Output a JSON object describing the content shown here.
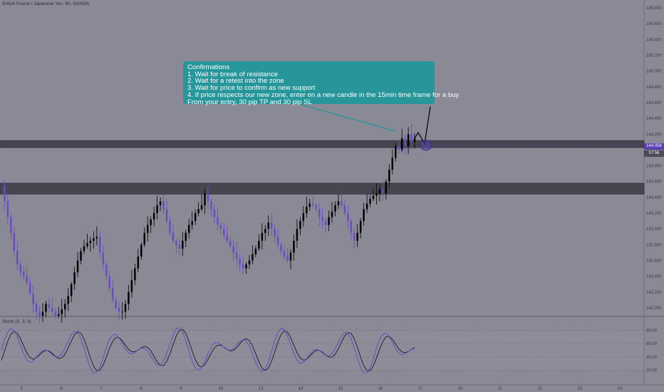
{
  "symbol_title": "British Pound / Japanese Yen, 60, OANDA",
  "oscillator_label": "Stoch (5, 3, 3)",
  "annotation": {
    "lines": [
      "Confirmations",
      "1. Wait for break of resistance",
      "2. Wait for a retest into the zone",
      "3. Wait for price to confirm as new support",
      "4. If price respects our new zone, enter on a new candle in the 15min time frame for a buy",
      "From your entry, 30 pip TP and 30 pip SL"
    ]
  },
  "current_price": "144.056",
  "countdown": "07:56",
  "colors": {
    "background": "#8a8996",
    "bull_candle": "#000000",
    "bear_candle": "#6a4bc4",
    "zone": "#3a3a44",
    "annotation_bg": "#27969b",
    "price_badge": "#5a3fb1",
    "stoch_k": "#6a4bc4",
    "stoch_d": "#1a1a1a"
  },
  "chart_data": {
    "type": "candlestick",
    "price_axis": {
      "ylim": [
        141.9,
        145.9
      ],
      "ticks": [
        142.0,
        142.2,
        142.4,
        142.6,
        142.8,
        143.0,
        143.2,
        143.4,
        143.6,
        143.8,
        144.0,
        144.2,
        144.4,
        144.6,
        144.8,
        145.0,
        145.2,
        145.4,
        145.6,
        145.8
      ],
      "tick_labels": [
        "142.000",
        "142.200",
        "142.400",
        "142.600",
        "142.800",
        "143.000",
        "143.200",
        "143.400",
        "143.600",
        "143.800",
        "144.000",
        "144.200",
        "144.400",
        "144.600",
        "144.800",
        "145.000",
        "145.200",
        "145.400",
        "145.600",
        "145.800"
      ]
    },
    "x_axis": {
      "tick_labels": [
        "3",
        "6",
        "7",
        "8",
        "9",
        "10",
        "13",
        "14",
        "15",
        "16",
        "17",
        "20",
        "21",
        "22",
        "23",
        "24"
      ]
    },
    "zones": [
      {
        "name": "resistance-zone",
        "low": 144.03,
        "high": 144.12
      },
      {
        "name": "support-zone",
        "low": 143.44,
        "high": 143.58
      }
    ],
    "close_path": [
      143.55,
      143.35,
      143.15,
      142.95,
      142.72,
      142.55,
      142.45,
      142.4,
      142.32,
      142.18,
      142.05,
      141.95,
      141.9,
      141.95,
      142.05,
      142.0,
      141.95,
      141.9,
      141.92,
      141.98,
      142.05,
      142.15,
      142.3,
      142.45,
      142.6,
      142.72,
      142.78,
      142.82,
      142.85,
      142.88,
      142.9,
      142.7,
      142.55,
      142.4,
      142.25,
      142.1,
      142.0,
      141.95,
      141.95,
      142.05,
      142.2,
      142.35,
      142.5,
      142.65,
      142.8,
      142.95,
      143.05,
      143.12,
      143.2,
      143.3,
      143.35,
      143.25,
      143.1,
      142.95,
      142.85,
      142.8,
      142.75,
      142.85,
      142.95,
      143.05,
      143.1,
      143.2,
      143.25,
      143.3,
      143.45,
      143.35,
      143.25,
      143.15,
      143.05,
      143.0,
      142.92,
      142.85,
      142.78,
      142.7,
      142.62,
      142.55,
      142.5,
      142.55,
      142.6,
      142.68,
      142.75,
      142.85,
      142.95,
      143.0,
      143.08,
      143.0,
      142.9,
      142.8,
      142.72,
      142.65,
      142.6,
      142.7,
      142.85,
      143.0,
      143.1,
      143.2,
      143.28,
      143.32,
      143.3,
      143.25,
      143.15,
      143.1,
      143.05,
      143.15,
      143.22,
      143.3,
      143.35,
      143.3,
      143.2,
      143.1,
      142.95,
      142.85,
      142.95,
      143.1,
      143.25,
      143.32,
      143.38,
      143.42,
      143.45,
      143.5,
      143.45,
      143.6,
      143.75,
      143.9,
      144.05,
      144.0,
      144.15,
      144.05,
      144.2,
      144.1,
      144.15
    ],
    "projection": [
      [
        144.1,
        144.22
      ],
      [
        144.08,
        144.55
      ]
    ],
    "stoch_axis": {
      "ylim": [
        0,
        100
      ],
      "ticks": [
        20,
        40,
        60,
        80
      ],
      "tick_labels": [
        "20.00",
        "40.00",
        "60.00",
        "80.00"
      ]
    }
  }
}
